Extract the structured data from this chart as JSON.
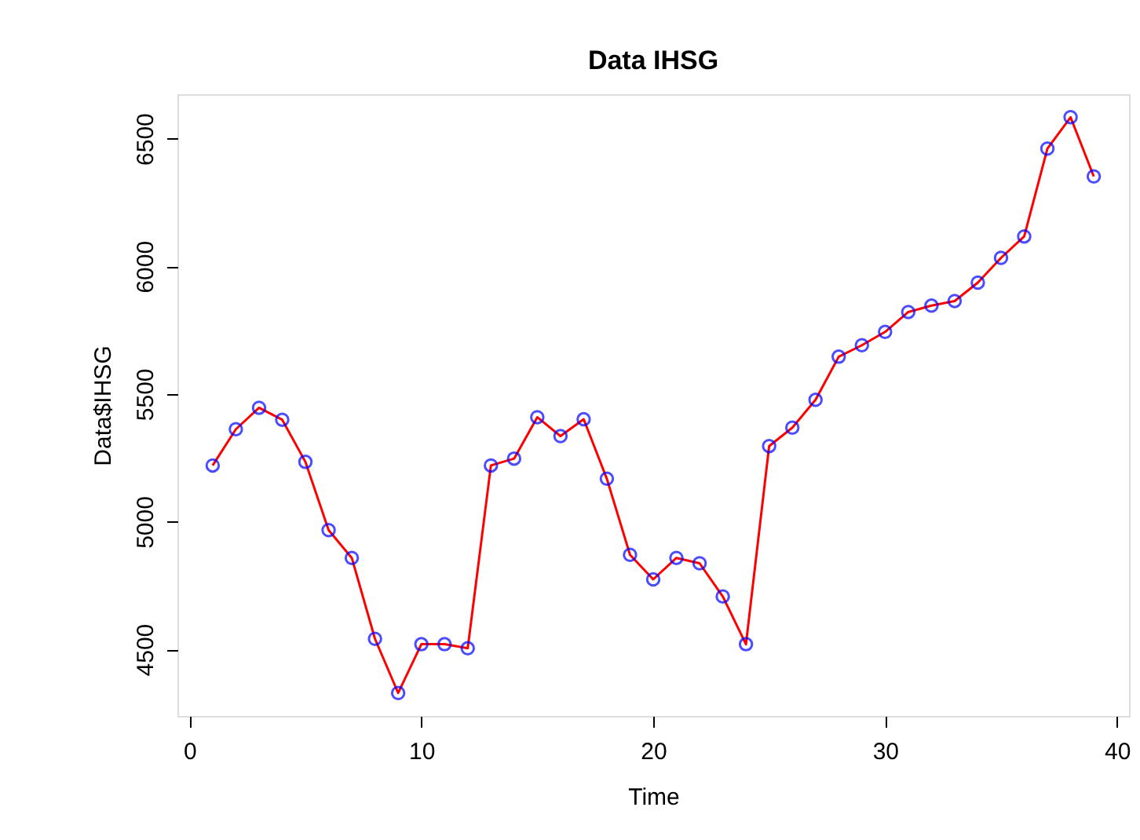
{
  "chart_data": {
    "type": "line",
    "title": "Data IHSG",
    "xlabel": "Time",
    "ylabel": "Data$IHSG",
    "x": [
      1,
      2,
      3,
      4,
      5,
      6,
      7,
      8,
      9,
      10,
      11,
      12,
      13,
      14,
      15,
      16,
      17,
      18,
      19,
      20,
      21,
      22,
      23,
      24,
      25,
      26,
      27,
      28,
      29,
      30,
      31,
      32,
      33,
      34,
      35,
      36,
      37,
      38,
      39
    ],
    "series": [
      {
        "color": "#ff0000",
        "line_style": "solid",
        "marker": "none",
        "values": [
          5220,
          5362,
          5446,
          5399,
          5234,
          4967,
          4858,
          4541,
          4329,
          4520,
          4520,
          4504,
          5220,
          5247,
          5409,
          5335,
          5401,
          5168,
          4870,
          4774,
          4858,
          4837,
          4707,
          4520,
          5296,
          5368,
          5477,
          5646,
          5691,
          5743,
          5821,
          5846,
          5864,
          5936,
          6033,
          6117,
          6461,
          6584,
          6352
        ]
      },
      {
        "type": "scatter",
        "color": "#0000ff",
        "marker": "circle",
        "values": [
          5220,
          5362,
          5446,
          5399,
          5234,
          4967,
          4858,
          4541,
          4329,
          4520,
          4520,
          4504,
          5220,
          5247,
          5409,
          5335,
          5401,
          5168,
          4870,
          4774,
          4858,
          4837,
          4707,
          4520,
          5296,
          5368,
          5477,
          5646,
          5691,
          5743,
          5821,
          5846,
          5864,
          5936,
          6033,
          6117,
          6461,
          6584,
          6352
        ]
      }
    ],
    "xlim": [
      -0.52,
      40.52
    ],
    "xticks": [
      0,
      10,
      20,
      30,
      40
    ],
    "ylim": [
      4239,
      6674
    ],
    "yticks": [
      4500,
      5000,
      5500,
      6000,
      6500
    ],
    "grid": false,
    "legend": false
  }
}
